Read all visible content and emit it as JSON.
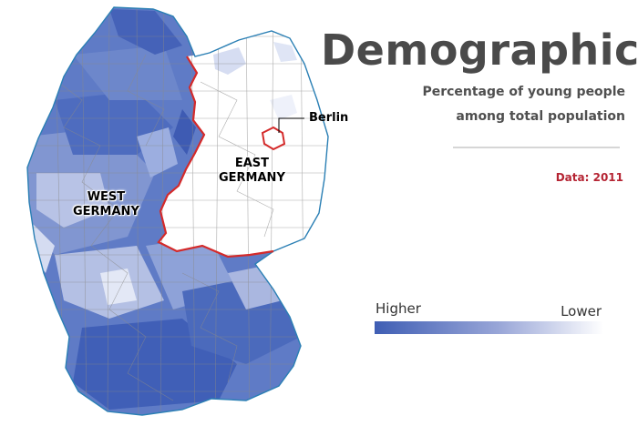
{
  "title": "Demographics",
  "subtitle_line1": "Percentage of young people",
  "subtitle_line2": "among total population",
  "source": "Data: 2011",
  "legend": {
    "high_label": "Higher",
    "low_label": "Lower",
    "high_color": "#3f5eb4",
    "low_color": "#ffffff"
  },
  "regions": {
    "west_line1": "WEST",
    "west_line2": "GERMANY",
    "east_line1": "EAST",
    "east_line2": "GERMANY",
    "capital": "Berlin"
  },
  "colors": {
    "former_border": "#d42a2a",
    "coast": "#2a7fb4",
    "district_lines": "#8a8a8a",
    "east_fill": "#ffffff"
  }
}
